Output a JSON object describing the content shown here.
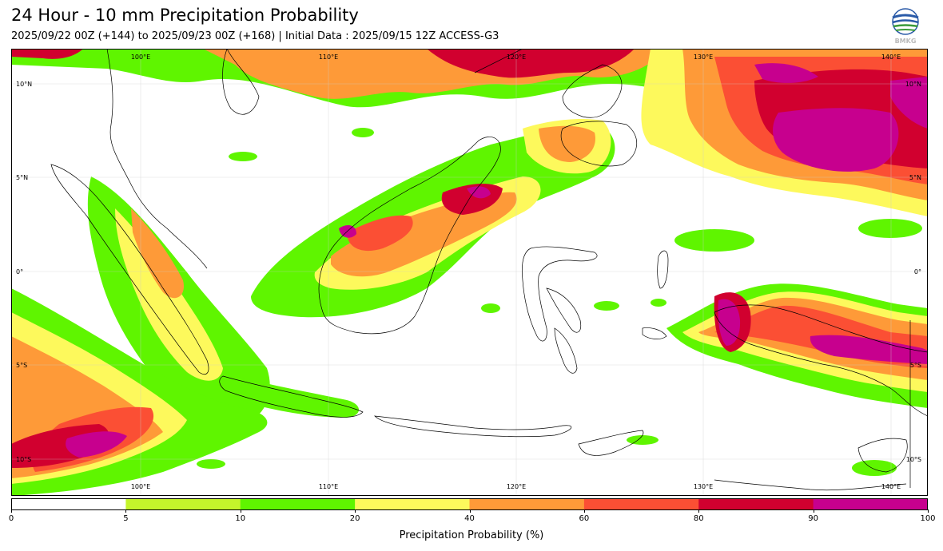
{
  "header": {
    "title": "24 Hour - 10 mm Precipitation Probability",
    "subtitle": "2025/09/22 00Z (+144) to 2025/09/23 00Z (+168) | Initial Data : 2025/09/15 12Z ACCESS-G3",
    "logo_text": "BMKG"
  },
  "map": {
    "lon_labels": [
      "100°E",
      "110°E",
      "120°E",
      "130°E",
      "140°E"
    ],
    "lat_labels": [
      "10°N",
      "5°N",
      "0°",
      "5°S",
      "10°S"
    ]
  },
  "colorbar": {
    "label": "Precipitation Probability (%)",
    "ticks": [
      "0",
      "5",
      "10",
      "20",
      "40",
      "60",
      "80",
      "90",
      "100"
    ],
    "colors": [
      "#ffffff",
      "#c4f52b",
      "#5ff500",
      "#fdf95c",
      "#fe9a38",
      "#fb4f34",
      "#d1002f",
      "#c7008e"
    ]
  }
}
